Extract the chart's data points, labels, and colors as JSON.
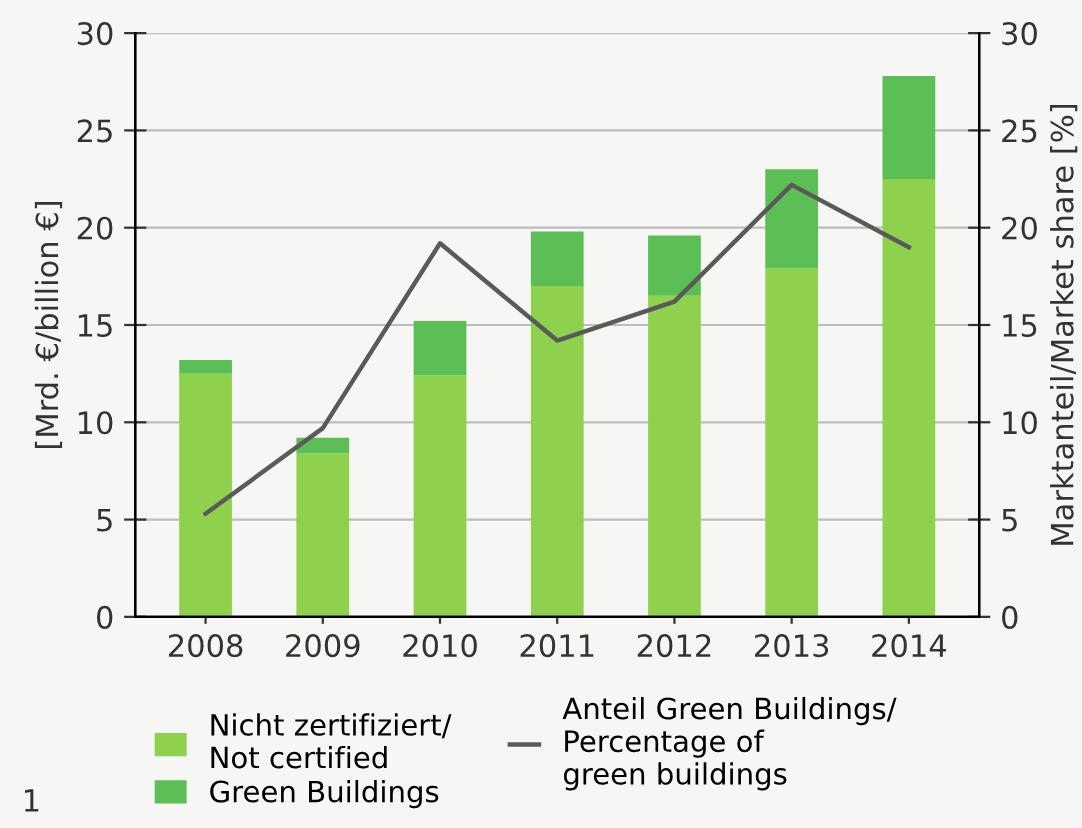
{
  "chart_data": {
    "type": "bar",
    "stacked": true,
    "categories": [
      "2008",
      "2009",
      "2010",
      "2011",
      "2012",
      "2013",
      "2014"
    ],
    "series": [
      {
        "name": "Nicht zertifiziert/\nNot certified",
        "color": "#8ed14c",
        "values": [
          12.5,
          8.4,
          12.4,
          17.0,
          16.5,
          17.9,
          22.5
        ]
      },
      {
        "name": "Green Buildings",
        "color": "#5cbf55",
        "values": [
          0.7,
          0.8,
          2.8,
          2.8,
          3.1,
          5.1,
          5.3
        ]
      },
      {
        "name": "Anteil Green Buildings/\nPercentage of\ngreen buildings",
        "type": "line",
        "axis": "y2",
        "color": "#5a5a5a",
        "values": [
          5.3,
          9.7,
          19.2,
          14.2,
          16.2,
          22.2,
          19.0
        ]
      }
    ],
    "ylabel": "[Mrd. €/billion €]",
    "y2label": "Marktanteil/Market share [%]",
    "ylim": [
      0,
      30
    ],
    "yticks": [
      0,
      5,
      10,
      15,
      20,
      25,
      30
    ],
    "y2lim": [
      0,
      30
    ],
    "y2ticks": [
      0,
      5,
      10,
      15,
      20,
      25,
      30
    ],
    "grid": "y",
    "legend": "bottom",
    "marker": "none",
    "line_style": "solid",
    "annotations": [
      "1"
    ]
  }
}
